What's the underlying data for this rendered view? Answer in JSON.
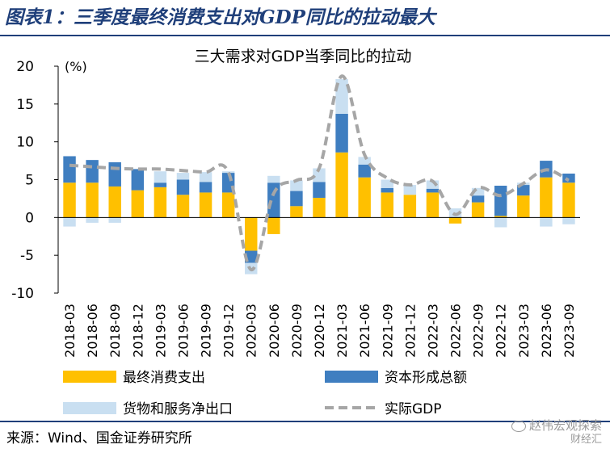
{
  "figure_title": "图表1：三季度最终消费支出对GDP同比的拉动最大",
  "source_text": "来源：Wind、国金证券研究所",
  "watermark": {
    "line1": "赵伟宏观探索",
    "line2": "财经汇"
  },
  "colors": {
    "consumption": "#FFC000",
    "capital": "#3F7EC0",
    "net_exports": "#C9DFF1",
    "gdp": "#A6A6A6",
    "title": "#1F3F7A"
  },
  "chart_data": {
    "type": "bar",
    "title": "三大需求对GDP当季同比的拉动",
    "unit_label": "(%)",
    "ylim": [
      -10,
      20
    ],
    "yticks": [
      20,
      15,
      10,
      5,
      0,
      -5,
      -10
    ],
    "categories": [
      "2018-03",
      "2018-06",
      "2018-09",
      "2018-12",
      "2019-03",
      "2019-06",
      "2019-09",
      "2019-12",
      "2020-03",
      "2020-06",
      "2020-09",
      "2020-12",
      "2021-03",
      "2021-06",
      "2021-09",
      "2021-12",
      "2022-03",
      "2022-06",
      "2022-09",
      "2022-12",
      "2023-03",
      "2023-06",
      "2023-09"
    ],
    "series": [
      {
        "name": "最终消费支出",
        "type": "bar",
        "stack": true,
        "values": [
          4.6,
          4.6,
          4.1,
          3.6,
          4.0,
          3.0,
          3.3,
          3.3,
          -4.4,
          -2.2,
          1.5,
          2.6,
          8.6,
          5.3,
          3.3,
          3.0,
          3.3,
          -0.8,
          2.0,
          0.2,
          2.9,
          5.3,
          4.6
        ]
      },
      {
        "name": "资本形成总额",
        "type": "bar",
        "stack": true,
        "values": [
          3.5,
          3.0,
          3.2,
          2.8,
          0.6,
          2.0,
          1.4,
          2.6,
          -1.6,
          4.6,
          2.0,
          2.1,
          5.1,
          1.7,
          0.6,
          0.0,
          0.5,
          0.0,
          0.9,
          4.0,
          1.4,
          2.2,
          1.2
        ]
      },
      {
        "name": "货物和服务净出口",
        "type": "bar",
        "stack": true,
        "values": [
          -1.2,
          -0.7,
          -0.7,
          -0.1,
          1.5,
          0.9,
          1.3,
          0.2,
          -1.5,
          0.9,
          1.4,
          1.8,
          4.6,
          1.0,
          1.1,
          1.3,
          1.1,
          1.2,
          1.0,
          -1.3,
          0.3,
          -1.2,
          -0.9
        ]
      },
      {
        "name": "实际GDP",
        "type": "line",
        "values": [
          6.9,
          6.7,
          6.5,
          6.4,
          6.4,
          6.2,
          6.0,
          6.0,
          -6.9,
          3.2,
          4.9,
          6.5,
          18.7,
          8.3,
          5.2,
          4.3,
          4.8,
          0.4,
          3.9,
          2.9,
          4.5,
          6.3,
          4.9
        ]
      }
    ]
  }
}
